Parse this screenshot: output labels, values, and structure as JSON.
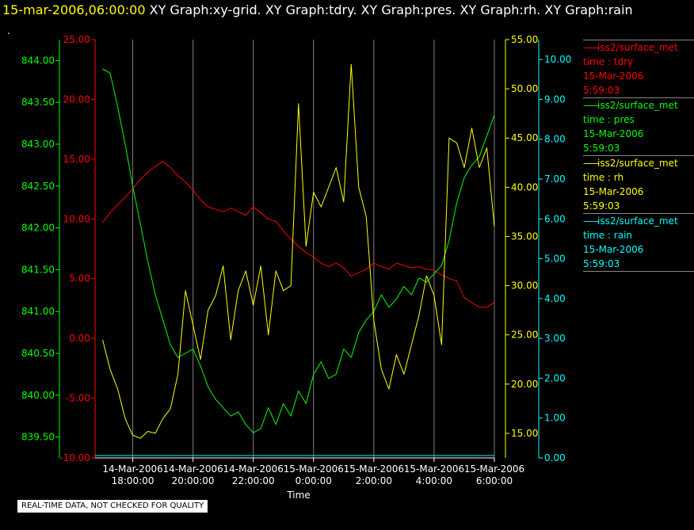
{
  "header": {
    "timestamp": "15-mar-2006,06:00:00",
    "titles": "XY Graph:xy-grid.  XY Graph:tdry.  XY Graph:pres.  XY Graph:rh.  XY Graph:rain",
    "dot": "."
  },
  "footer": {
    "text": "REAL-TIME DATA, NOT CHECKED FOR QUALITY"
  },
  "legend": [
    {
      "line1": "iss2/surface_met",
      "line2": "time : tdry",
      "line3": "15-Mar-2006",
      "line4": "5:59:03",
      "color": "#ff0000"
    },
    {
      "line1": "iss2/surface_met",
      "line2": "time : pres",
      "line3": "15-Mar-2006",
      "line4": "5:59:03",
      "color": "#00ff00"
    },
    {
      "line1": "iss2/surface_met",
      "line2": "time : rh",
      "line3": "15-Mar-2006",
      "line4": "5:59:03",
      "color": "#ffff00"
    },
    {
      "line1": "iss2/surface_met",
      "line2": "time : rain",
      "line3": "15-Mar-2006",
      "line4": "5:59:03",
      "color": "#00ffff"
    }
  ],
  "chart_data": {
    "type": "line",
    "xlabel": "Time",
    "xlim": [
      -7.25,
      6.0
    ],
    "x_unit": "hours relative to 15-Mar-2006 0:00:00",
    "x_ticks": [
      {
        "x": -6,
        "line1": "14-Mar-2006",
        "line2": "18:00:00"
      },
      {
        "x": -4,
        "line1": "14-Mar-2006",
        "line2": "20:00:00"
      },
      {
        "x": -2,
        "line1": "14-Mar-2006",
        "line2": "22:00:00"
      },
      {
        "x": 0,
        "line1": "15-Mar-2006",
        "line2": "0:00:00"
      },
      {
        "x": 2,
        "line1": "15-Mar-2006",
        "line2": "2:00:00"
      },
      {
        "x": 4,
        "line1": "15-Mar-2006",
        "line2": "4:00:00"
      },
      {
        "x": 6,
        "line1": "15-Mar-2006",
        "line2": "6:00:00"
      }
    ],
    "grid": "vertical",
    "axes": [
      {
        "id": "pres",
        "color": "#00ff00",
        "ylim": [
          839.25,
          844.25
        ],
        "ticks": [
          "839.50",
          "840.00",
          "840.50",
          "841.00",
          "841.50",
          "842.00",
          "842.50",
          "843.00",
          "843.50",
          "844.00"
        ]
      },
      {
        "id": "tdry",
        "color": "#ff0000",
        "ylim": [
          -10,
          25
        ],
        "ticks": [
          "-10.00",
          "-5.00",
          "0.00",
          "5.00",
          "10.00",
          "15.00",
          "20.00",
          "25.00"
        ]
      },
      {
        "id": "rh",
        "color": "#ffff00",
        "ylim": [
          12.5,
          55
        ],
        "ticks": [
          "15.00",
          "20.00",
          "25.00",
          "30.00",
          "35.00",
          "40.00",
          "45.00",
          "50.00",
          "55.00"
        ]
      },
      {
        "id": "rain",
        "color": "#00ffff",
        "ylim": [
          0,
          10.5
        ],
        "ticks": [
          "0.00",
          "1.00",
          "2.00",
          "3.00",
          "4.00",
          "5.00",
          "6.00",
          "7.00",
          "8.00",
          "9.00",
          "10.00"
        ]
      }
    ],
    "series": [
      {
        "name": "tdry",
        "axis": "tdry",
        "color": "#ff0000",
        "x": [
          -7.0,
          -6.75,
          -6.5,
          -6.25,
          -6.0,
          -5.75,
          -5.5,
          -5.25,
          -5.0,
          -4.75,
          -4.5,
          -4.25,
          -4.0,
          -3.75,
          -3.5,
          -3.25,
          -3.0,
          -2.75,
          -2.5,
          -2.25,
          -2.0,
          -1.75,
          -1.5,
          -1.25,
          -1.0,
          -0.75,
          -0.5,
          -0.25,
          0.0,
          0.25,
          0.5,
          0.75,
          1.0,
          1.25,
          1.5,
          1.75,
          2.0,
          2.25,
          2.5,
          2.75,
          3.0,
          3.25,
          3.5,
          3.75,
          4.0,
          4.25,
          4.5,
          4.75,
          5.0,
          5.25,
          5.5,
          5.75,
          6.0
        ],
        "y": [
          9.7,
          10.5,
          11.2,
          11.8,
          12.5,
          13.3,
          13.9,
          14.4,
          14.8,
          14.3,
          13.6,
          13.1,
          12.4,
          11.6,
          11.0,
          10.8,
          10.6,
          10.9,
          10.6,
          10.3,
          11.0,
          10.5,
          10.0,
          9.8,
          9.0,
          8.3,
          7.7,
          7.2,
          6.8,
          6.3,
          6.0,
          6.3,
          5.9,
          5.2,
          5.5,
          5.8,
          6.3,
          6.0,
          5.8,
          6.3,
          6.1,
          5.9,
          6.0,
          5.8,
          5.7,
          5.3,
          5.0,
          4.8,
          3.4,
          3.0,
          2.6,
          2.6,
          3.0
        ]
      },
      {
        "name": "pres",
        "axis": "pres",
        "color": "#00ff00",
        "x": [
          -7.0,
          -6.75,
          -6.5,
          -6.25,
          -6.0,
          -5.75,
          -5.5,
          -5.25,
          -5.0,
          -4.75,
          -4.5,
          -4.25,
          -4.0,
          -3.75,
          -3.5,
          -3.25,
          -3.0,
          -2.75,
          -2.5,
          -2.25,
          -2.0,
          -1.75,
          -1.5,
          -1.25,
          -1.0,
          -0.75,
          -0.5,
          -0.25,
          0.0,
          0.25,
          0.5,
          0.75,
          1.0,
          1.25,
          1.5,
          1.75,
          2.0,
          2.25,
          2.5,
          2.75,
          3.0,
          3.25,
          3.5,
          3.75,
          4.0,
          4.25,
          4.5,
          4.75,
          5.0,
          5.25,
          5.5,
          5.75,
          6.0
        ],
        "y": [
          843.9,
          843.85,
          843.45,
          843.0,
          842.5,
          842.05,
          841.6,
          841.2,
          840.9,
          840.6,
          840.45,
          840.5,
          840.55,
          840.35,
          840.1,
          839.95,
          839.85,
          839.75,
          839.8,
          839.65,
          839.55,
          839.6,
          839.85,
          839.65,
          839.9,
          839.75,
          840.05,
          839.9,
          840.25,
          840.4,
          840.2,
          840.25,
          840.55,
          840.45,
          840.75,
          840.9,
          841.0,
          841.2,
          841.05,
          841.15,
          841.3,
          841.2,
          841.4,
          841.35,
          841.45,
          841.55,
          841.85,
          842.3,
          842.6,
          842.75,
          842.85,
          843.1,
          843.35
        ]
      },
      {
        "name": "rh",
        "axis": "rh",
        "color": "#ffff00",
        "x": [
          -7.0,
          -6.75,
          -6.5,
          -6.25,
          -6.0,
          -5.75,
          -5.5,
          -5.25,
          -5.0,
          -4.75,
          -4.5,
          -4.25,
          -4.0,
          -3.75,
          -3.5,
          -3.25,
          -3.0,
          -2.75,
          -2.5,
          -2.25,
          -2.0,
          -1.75,
          -1.5,
          -1.25,
          -1.0,
          -0.75,
          -0.5,
          -0.25,
          0.0,
          0.25,
          0.5,
          0.75,
          1.0,
          1.25,
          1.5,
          1.75,
          2.0,
          2.25,
          2.5,
          2.75,
          3.0,
          3.25,
          3.5,
          3.75,
          4.0,
          4.25,
          4.5,
          4.75,
          5.0,
          5.25,
          5.5,
          5.75,
          6.0
        ],
        "y": [
          24.5,
          21.5,
          19.5,
          16.5,
          14.8,
          14.5,
          15.2,
          15.0,
          16.5,
          17.5,
          21.0,
          29.5,
          26.0,
          22.5,
          27.5,
          29.0,
          32.0,
          24.5,
          29.5,
          31.5,
          28.0,
          32.0,
          25.0,
          31.5,
          29.5,
          30.0,
          48.5,
          34.0,
          39.5,
          38.0,
          40.0,
          42.0,
          38.5,
          52.5,
          40.0,
          37.0,
          26.5,
          21.5,
          19.5,
          23.0,
          21.0,
          24.0,
          27.0,
          31.0,
          29.0,
          24.0,
          45.0,
          44.5,
          42.0,
          46.0,
          42.0,
          44.0,
          36.0
        ]
      },
      {
        "name": "rain",
        "axis": "rain",
        "color": "#00ffff",
        "x": [
          -7.25,
          6.0
        ],
        "y": [
          0.06,
          0.06
        ]
      }
    ]
  }
}
